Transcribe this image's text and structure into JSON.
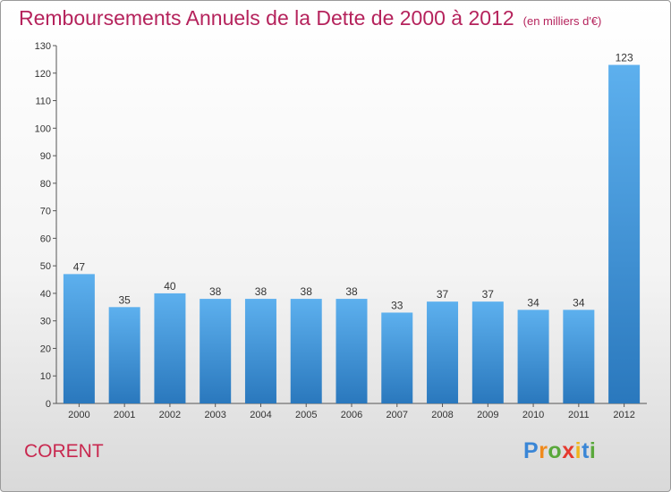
{
  "title": "Remboursements Annuels de la Dette de 2000 à 2012",
  "subtitle": "(en milliers d'€)",
  "commune": "CORENT",
  "logo": {
    "letters": [
      {
        "ch": "P",
        "color": "#3a86d6"
      },
      {
        "ch": "r",
        "color": "#f08a1c"
      },
      {
        "ch": "o",
        "color": "#5aa83c"
      },
      {
        "ch": "x",
        "color": "#e53a2f"
      },
      {
        "ch": "i",
        "color": "#f0b51c"
      },
      {
        "ch": "t",
        "color": "#3a86d6"
      },
      {
        "ch": "i",
        "color": "#5aa83c"
      }
    ]
  },
  "colors": {
    "accent": "#b5235c",
    "bar_light": "#5db0ee",
    "bar_dark": "#2a78bd"
  },
  "chart_data": {
    "type": "bar",
    "categories": [
      "2000",
      "2001",
      "2002",
      "2003",
      "2004",
      "2005",
      "2006",
      "2007",
      "2008",
      "2009",
      "2010",
      "2011",
      "2012"
    ],
    "values": [
      47,
      35,
      40,
      38,
      38,
      38,
      38,
      33,
      37,
      37,
      34,
      34,
      123
    ],
    "ylim": [
      0,
      130
    ],
    "yticks": [
      0,
      10,
      20,
      30,
      40,
      50,
      60,
      70,
      80,
      90,
      100,
      110,
      120,
      130
    ],
    "grid": false,
    "data_labels": true
  }
}
